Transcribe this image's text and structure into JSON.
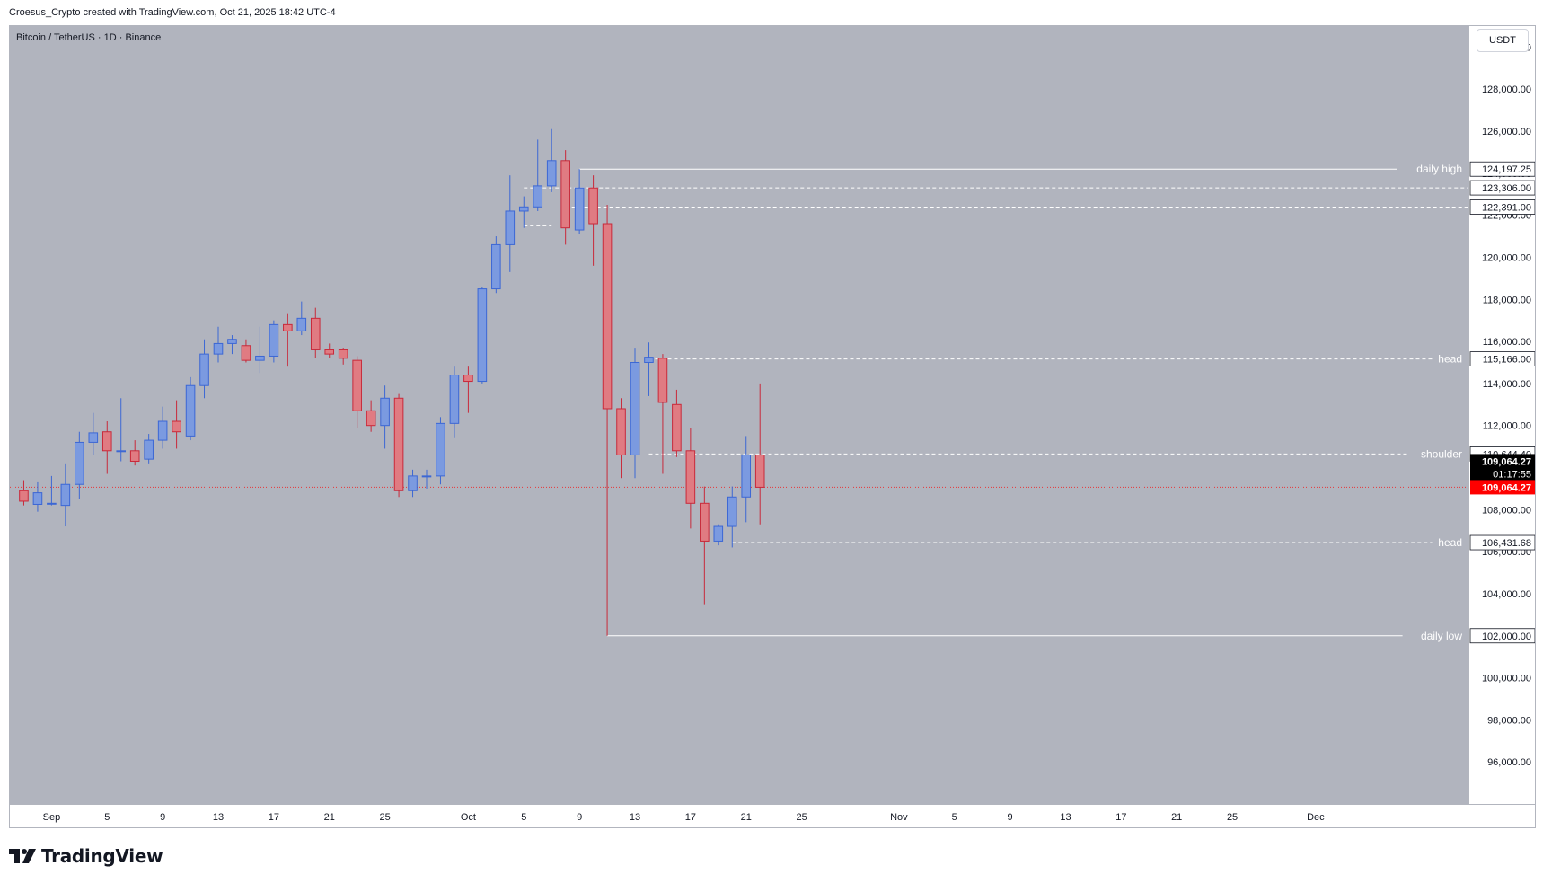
{
  "attribution": "Croesus_Crypto created with TradingView.com, Oct 21, 2025 18:42 UTC-4",
  "symbol_title": "Bitcoin / TetherUS · 1D · Binance",
  "currency_button": "USDT",
  "brand": {
    "text": "TradingView",
    "icon": "tradingview-logo-icon"
  },
  "colors": {
    "pane_bg": "#b1b4be",
    "up_body": "#7b9ae0",
    "up_border": "#3c67d4",
    "down_body": "#e07b82",
    "down_border": "#c8293a",
    "level_line": "#ffffff",
    "last_price_tag": "#ff0000",
    "countdown_tag": "#000000"
  },
  "chart_data": {
    "type": "candlestick",
    "price_range": [
      94000,
      131000
    ],
    "x_range_days": [
      -3,
      102
    ],
    "y_ticks": [
      96000,
      98000,
      100000,
      102000,
      104000,
      106000,
      108000,
      110000,
      112000,
      114000,
      116000,
      118000,
      120000,
      122000,
      124000,
      126000,
      128000,
      130000
    ],
    "y_tick_labels": [
      "96,000.00",
      "98,000.00",
      "100,000.00",
      "102,000.00",
      "104,000.00",
      "106,000.00",
      "108,000.00",
      "110,000.00",
      "112,000.00",
      "114,000.00",
      "116,000.00",
      "118,000.00",
      "120,000.00",
      "122,000.00",
      "124,000.00",
      "126,000.00",
      "128,000.00",
      "130,000.00"
    ],
    "x_ticks": [
      {
        "day": 0,
        "label": "Sep"
      },
      {
        "day": 4,
        "label": "5"
      },
      {
        "day": 8,
        "label": "9"
      },
      {
        "day": 12,
        "label": "13"
      },
      {
        "day": 16,
        "label": "17"
      },
      {
        "day": 20,
        "label": "21"
      },
      {
        "day": 24,
        "label": "25"
      },
      {
        "day": 30,
        "label": "Oct"
      },
      {
        "day": 34,
        "label": "5"
      },
      {
        "day": 38,
        "label": "9"
      },
      {
        "day": 42,
        "label": "13"
      },
      {
        "day": 46,
        "label": "17"
      },
      {
        "day": 50,
        "label": "21"
      },
      {
        "day": 54,
        "label": "25"
      },
      {
        "day": 61,
        "label": "Nov"
      },
      {
        "day": 65,
        "label": "5"
      },
      {
        "day": 69,
        "label": "9"
      },
      {
        "day": 73,
        "label": "13"
      },
      {
        "day": 77,
        "label": "17"
      },
      {
        "day": 81,
        "label": "21"
      },
      {
        "day": 85,
        "label": "25"
      },
      {
        "day": 91,
        "label": "Dec"
      }
    ],
    "candles": [
      {
        "day": -2,
        "o": 108900,
        "h": 109400,
        "l": 108200,
        "c": 108400
      },
      {
        "day": -1,
        "o": 108250,
        "h": 109300,
        "l": 107900,
        "c": 108800
      },
      {
        "day": 0,
        "o": 108300,
        "h": 109600,
        "l": 108200,
        "c": 108300
      },
      {
        "day": 1,
        "o": 108200,
        "h": 110200,
        "l": 107200,
        "c": 109200
      },
      {
        "day": 2,
        "o": 109200,
        "h": 111700,
        "l": 108500,
        "c": 111200
      },
      {
        "day": 3,
        "o": 111200,
        "h": 112600,
        "l": 110600,
        "c": 111650
      },
      {
        "day": 4,
        "o": 111700,
        "h": 112200,
        "l": 109700,
        "c": 110800
      },
      {
        "day": 5,
        "o": 110800,
        "h": 113300,
        "l": 110300,
        "c": 110800
      },
      {
        "day": 6,
        "o": 110800,
        "h": 111300,
        "l": 110100,
        "c": 110300
      },
      {
        "day": 7,
        "o": 110400,
        "h": 111600,
        "l": 110200,
        "c": 111300
      },
      {
        "day": 8,
        "o": 111300,
        "h": 112900,
        "l": 110900,
        "c": 112200
      },
      {
        "day": 9,
        "o": 112200,
        "h": 113200,
        "l": 110900,
        "c": 111700
      },
      {
        "day": 10,
        "o": 111500,
        "h": 114300,
        "l": 111300,
        "c": 113900
      },
      {
        "day": 11,
        "o": 113900,
        "h": 116100,
        "l": 113300,
        "c": 115400
      },
      {
        "day": 12,
        "o": 115400,
        "h": 116700,
        "l": 115000,
        "c": 115900
      },
      {
        "day": 13,
        "o": 115900,
        "h": 116300,
        "l": 115400,
        "c": 116100
      },
      {
        "day": 14,
        "o": 115800,
        "h": 116100,
        "l": 115000,
        "c": 115100
      },
      {
        "day": 15,
        "o": 115100,
        "h": 116700,
        "l": 114500,
        "c": 115300
      },
      {
        "day": 16,
        "o": 115300,
        "h": 117000,
        "l": 115000,
        "c": 116800
      },
      {
        "day": 17,
        "o": 116800,
        "h": 117300,
        "l": 114800,
        "c": 116500
      },
      {
        "day": 18,
        "o": 116500,
        "h": 117900,
        "l": 116300,
        "c": 117100
      },
      {
        "day": 19,
        "o": 117100,
        "h": 117600,
        "l": 115200,
        "c": 115600
      },
      {
        "day": 20,
        "o": 115600,
        "h": 115900,
        "l": 115200,
        "c": 115400
      },
      {
        "day": 21,
        "o": 115600,
        "h": 115700,
        "l": 114900,
        "c": 115200
      },
      {
        "day": 22,
        "o": 115100,
        "h": 115300,
        "l": 111900,
        "c": 112700
      },
      {
        "day": 23,
        "o": 112700,
        "h": 113200,
        "l": 111700,
        "c": 112000
      },
      {
        "day": 24,
        "o": 112000,
        "h": 113900,
        "l": 110900,
        "c": 113300
      },
      {
        "day": 25,
        "o": 113300,
        "h": 113500,
        "l": 108600,
        "c": 108900
      },
      {
        "day": 26,
        "o": 108900,
        "h": 109900,
        "l": 108600,
        "c": 109600
      },
      {
        "day": 27,
        "o": 109600,
        "h": 109900,
        "l": 109000,
        "c": 109600
      },
      {
        "day": 28,
        "o": 109600,
        "h": 112400,
        "l": 109200,
        "c": 112100
      },
      {
        "day": 29,
        "o": 112100,
        "h": 114800,
        "l": 111400,
        "c": 114400
      },
      {
        "day": 30,
        "o": 114400,
        "h": 114800,
        "l": 112600,
        "c": 114100
      },
      {
        "day": 31,
        "o": 114100,
        "h": 118600,
        "l": 114000,
        "c": 118500
      },
      {
        "day": 32,
        "o": 118500,
        "h": 121000,
        "l": 118300,
        "c": 120600
      },
      {
        "day": 33,
        "o": 120600,
        "h": 123900,
        "l": 119300,
        "c": 122200
      },
      {
        "day": 34,
        "o": 122200,
        "h": 122900,
        "l": 121400,
        "c": 122400
      },
      {
        "day": 35,
        "o": 122400,
        "h": 125600,
        "l": 122200,
        "c": 123400
      },
      {
        "day": 36,
        "o": 123400,
        "h": 126100,
        "l": 123100,
        "c": 124600
      },
      {
        "day": 37,
        "o": 124600,
        "h": 125100,
        "l": 120600,
        "c": 121400
      },
      {
        "day": 38,
        "o": 121300,
        "h": 124200,
        "l": 121100,
        "c": 123300
      },
      {
        "day": 39,
        "o": 123300,
        "h": 123900,
        "l": 119600,
        "c": 121600
      },
      {
        "day": 40,
        "o": 121600,
        "h": 122500,
        "l": 102000,
        "c": 112800
      },
      {
        "day": 41,
        "o": 112800,
        "h": 113300,
        "l": 109500,
        "c": 110600
      },
      {
        "day": 42,
        "o": 110600,
        "h": 115700,
        "l": 109500,
        "c": 115000
      },
      {
        "day": 43,
        "o": 115000,
        "h": 115950,
        "l": 113400,
        "c": 115250
      },
      {
        "day": 44,
        "o": 115200,
        "h": 115400,
        "l": 109700,
        "c": 113100
      },
      {
        "day": 45,
        "o": 113000,
        "h": 113700,
        "l": 110500,
        "c": 110800
      },
      {
        "day": 46,
        "o": 110800,
        "h": 111900,
        "l": 107100,
        "c": 108300
      },
      {
        "day": 47,
        "o": 108300,
        "h": 109100,
        "l": 103500,
        "c": 106500
      },
      {
        "day": 48,
        "o": 106500,
        "h": 107300,
        "l": 106300,
        "c": 107200
      },
      {
        "day": 49,
        "o": 107200,
        "h": 109100,
        "l": 106200,
        "c": 108600
      },
      {
        "day": 50,
        "o": 108600,
        "h": 111500,
        "l": 107400,
        "c": 110600
      },
      {
        "day": 51,
        "o": 110600,
        "h": 114000,
        "l": 107300,
        "c": 109064.27
      }
    ],
    "levels": [
      {
        "price": 124197.25,
        "label": "daily high",
        "price_label": "124,197.25",
        "style": "solid",
        "from_day": 38
      },
      {
        "price": 123306.0,
        "label": "",
        "price_label": "123,306.00",
        "style": "dashed",
        "from_day": 34
      },
      {
        "price": 122391.0,
        "label": "",
        "price_label": "122,391.00",
        "style": "dashed",
        "from_day": 37
      },
      {
        "price": 121500,
        "label": "",
        "price_label": "",
        "style": "dashed",
        "from_day": 34,
        "to_day": 36
      },
      {
        "price": 115166.0,
        "label": "head",
        "price_label": "115,166.00",
        "style": "dashed",
        "from_day": 43
      },
      {
        "price": 110644.4,
        "label": "shoulder",
        "price_label": "110,644.40",
        "style": "dashed",
        "from_day": 43
      },
      {
        "price": 106431.68,
        "label": "head",
        "price_label": "106,431.68",
        "style": "dashed",
        "from_day": 49
      },
      {
        "price": 102000.0,
        "label": "daily low",
        "price_label": "102,000.00",
        "style": "solid",
        "from_day": 40
      }
    ],
    "current_price": 109064.27,
    "current_price_label": "109,064.27",
    "countdown": "01:17:55"
  }
}
